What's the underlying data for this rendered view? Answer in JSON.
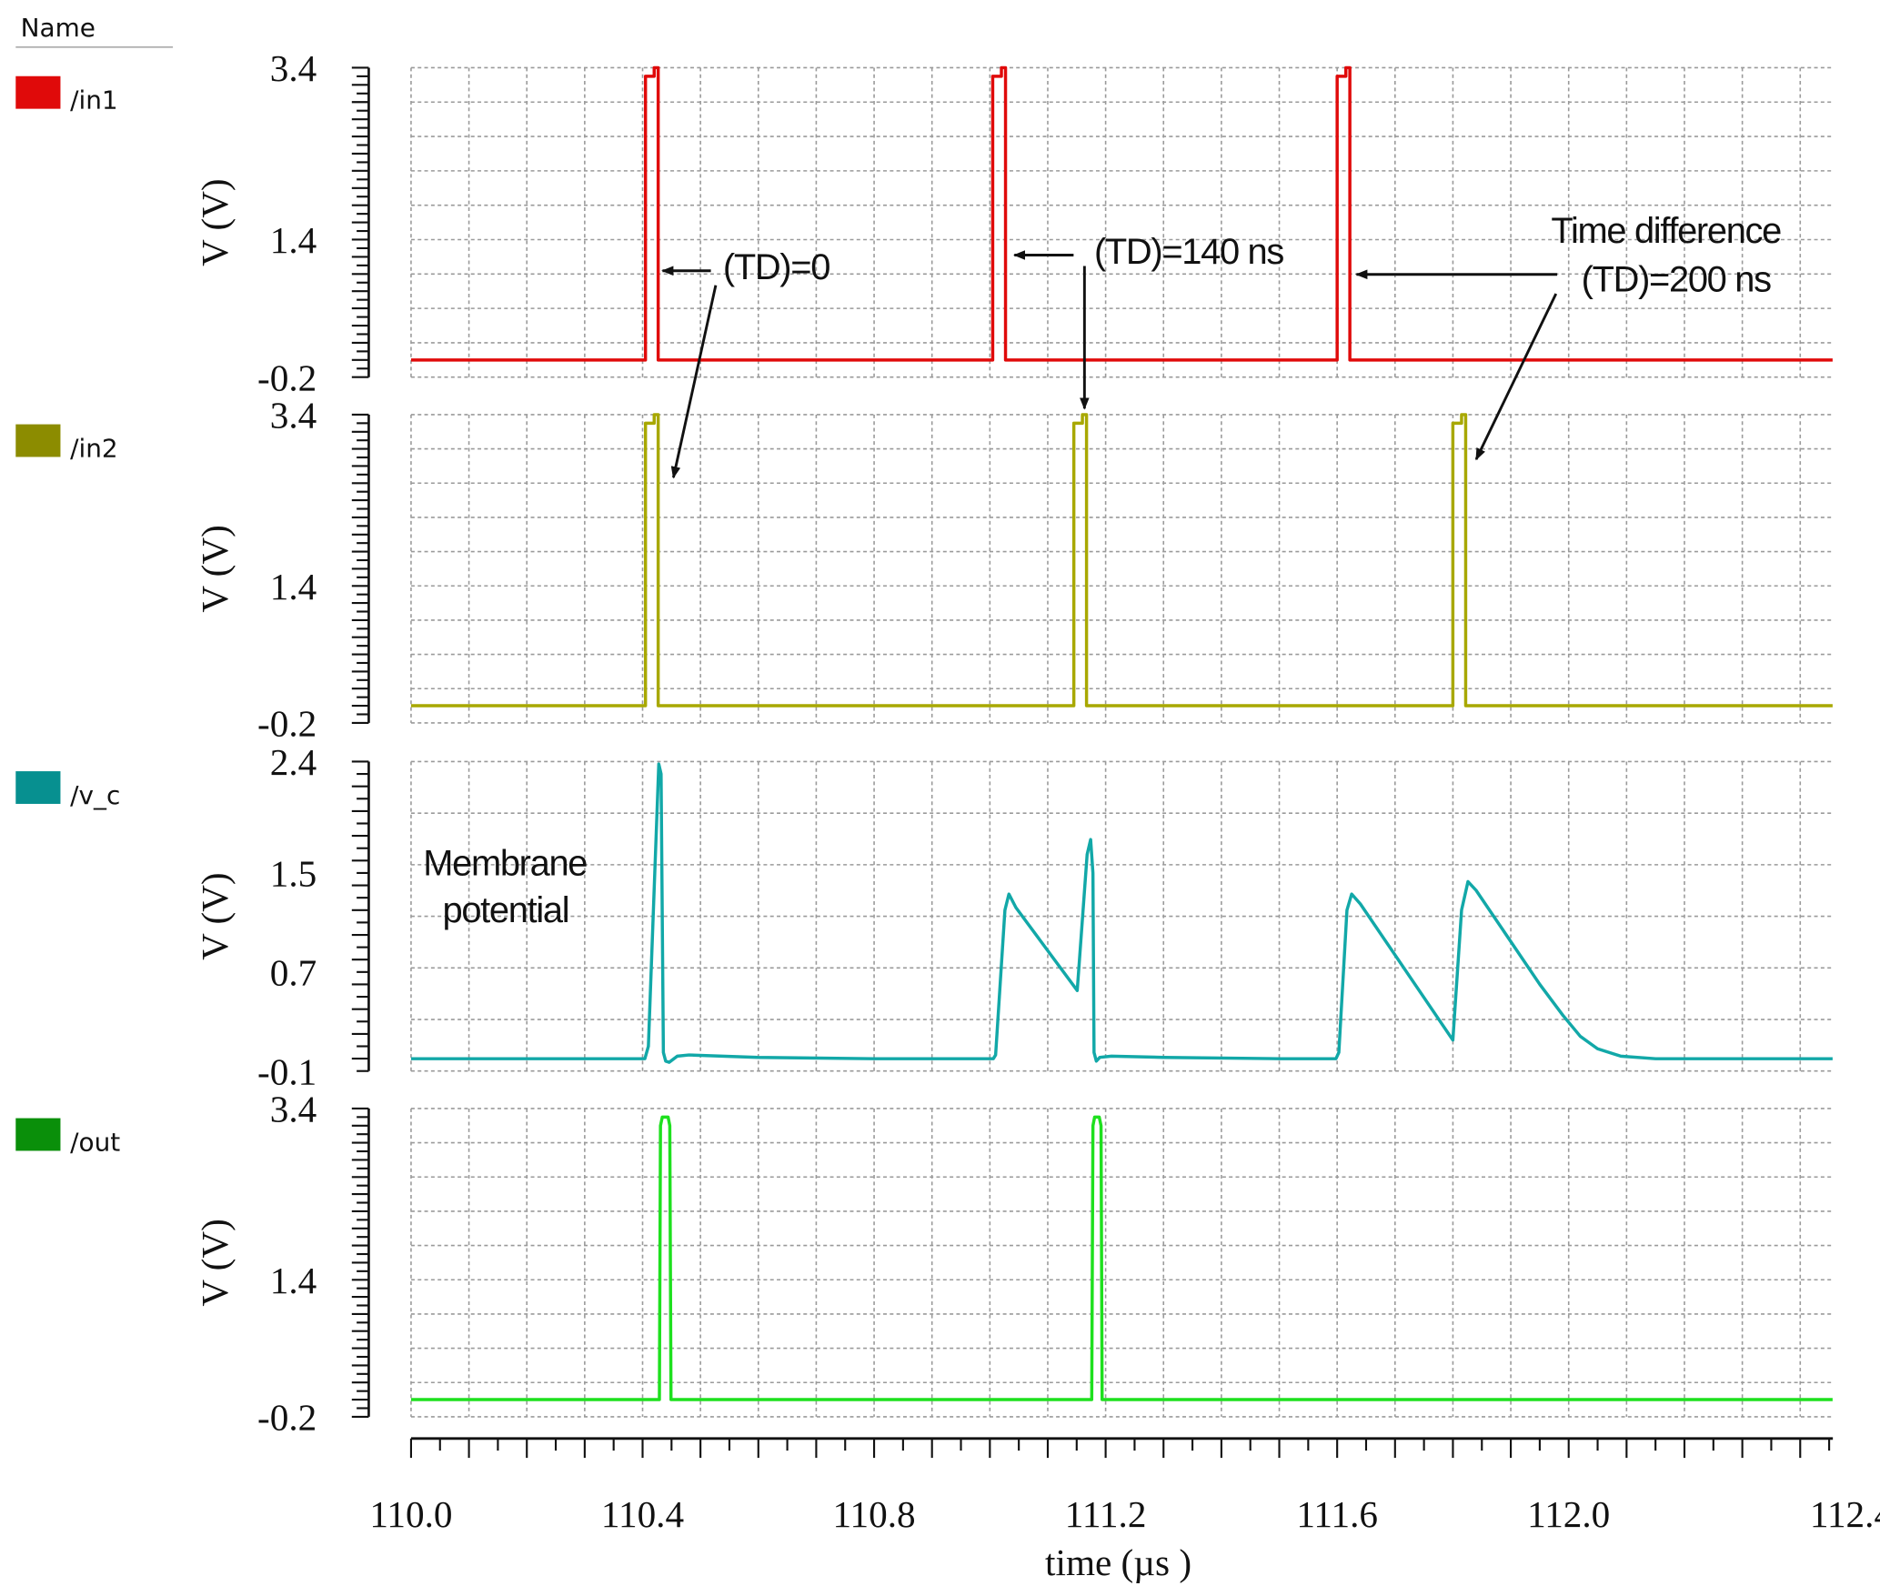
{
  "legend": {
    "title": "Name",
    "items": [
      {
        "label": "/in1",
        "swatch": "#e00a0a"
      },
      {
        "label": "/in2",
        "swatch": "#8c8c00"
      },
      {
        "label": "/v_c",
        "swatch": "#079090"
      },
      {
        "label": "/out",
        "swatch": "#0a8f0a"
      }
    ]
  },
  "annotations": {
    "td0": "(TD)=0",
    "td140": "(TD)=140 ns",
    "td200_line1": "Time difference",
    "td200_line2": "(TD)=200 ns",
    "membrane_line1": "Membrane",
    "membrane_line2": "potential"
  },
  "chart_data": {
    "type": "line",
    "xlabel": "time (µs )",
    "xlim": [
      110.0,
      112.456
    ],
    "x_tick_labels": [
      "110.0",
      "110.4",
      "110.8",
      "111.2",
      "111.6",
      "112.0",
      "112.4"
    ],
    "x_ticks": [
      110.0,
      110.4,
      110.8,
      111.2,
      111.6,
      112.0,
      112.4
    ],
    "grid": true,
    "panels": [
      {
        "name": "/in1",
        "ylabel": "V (V)",
        "ylim": [
          -0.2,
          3.4
        ],
        "y_tick_labels": [
          "3.4",
          "1.4",
          "-0.2"
        ],
        "y_ticks": [
          3.4,
          1.4,
          -0.2
        ],
        "color": "#e00a0a",
        "points": [
          [
            110,
            0
          ],
          [
            110.405,
            0
          ],
          [
            110.405,
            3.3
          ],
          [
            110.42,
            3.3
          ],
          [
            110.42,
            3.4
          ],
          [
            110.427,
            3.4
          ],
          [
            110.427,
            0
          ],
          [
            111.005,
            0
          ],
          [
            111.005,
            3.3
          ],
          [
            111.02,
            3.3
          ],
          [
            111.02,
            3.4
          ],
          [
            111.027,
            3.4
          ],
          [
            111.027,
            0
          ],
          [
            111.6,
            0
          ],
          [
            111.6,
            3.3
          ],
          [
            111.615,
            3.3
          ],
          [
            111.615,
            3.4
          ],
          [
            111.622,
            3.4
          ],
          [
            111.622,
            0
          ],
          [
            112.456,
            0
          ]
        ]
      },
      {
        "name": "/in2",
        "ylabel": "V (V)",
        "ylim": [
          -0.2,
          3.4
        ],
        "y_tick_labels": [
          "3.4",
          "1.4",
          "-0.2"
        ],
        "y_ticks": [
          3.4,
          1.4,
          -0.2
        ],
        "color": "#a8a800",
        "points": [
          [
            110,
            0
          ],
          [
            110.405,
            0
          ],
          [
            110.405,
            3.3
          ],
          [
            110.42,
            3.3
          ],
          [
            110.42,
            3.4
          ],
          [
            110.427,
            3.4
          ],
          [
            110.427,
            0
          ],
          [
            111.145,
            0
          ],
          [
            111.145,
            3.3
          ],
          [
            111.16,
            3.3
          ],
          [
            111.16,
            3.4
          ],
          [
            111.167,
            3.4
          ],
          [
            111.167,
            0
          ],
          [
            111.8,
            0
          ],
          [
            111.8,
            3.3
          ],
          [
            111.815,
            3.3
          ],
          [
            111.815,
            3.4
          ],
          [
            111.822,
            3.4
          ],
          [
            111.822,
            0
          ],
          [
            112.456,
            0
          ]
        ]
      },
      {
        "name": "/v_c",
        "ylabel": "V (V)",
        "ylim": [
          -0.1,
          2.4
        ],
        "y_tick_labels": [
          "2.4",
          "1.5",
          "0.7",
          "-0.1"
        ],
        "y_ticks": [
          2.4,
          1.5,
          0.7,
          -0.1
        ],
        "color": "#12a8a8",
        "points": [
          [
            110,
            0
          ],
          [
            110.404,
            0
          ],
          [
            110.41,
            0.1
          ],
          [
            110.428,
            2.38
          ],
          [
            110.432,
            2.3
          ],
          [
            110.436,
            0.05
          ],
          [
            110.44,
            -0.02
          ],
          [
            110.446,
            -0.03
          ],
          [
            110.46,
            0.02
          ],
          [
            110.48,
            0.03
          ],
          [
            110.6,
            0.01
          ],
          [
            110.8,
            0
          ],
          [
            111.006,
            0
          ],
          [
            111.01,
            0.03
          ],
          [
            111.026,
            1.2
          ],
          [
            111.033,
            1.33
          ],
          [
            111.045,
            1.22
          ],
          [
            111.151,
            0.55
          ],
          [
            111.168,
            1.65
          ],
          [
            111.174,
            1.77
          ],
          [
            111.178,
            1.5
          ],
          [
            111.18,
            0.05
          ],
          [
            111.184,
            -0.02
          ],
          [
            111.19,
            0.01
          ],
          [
            111.21,
            0.02
          ],
          [
            111.3,
            0.01
          ],
          [
            111.5,
            0
          ],
          [
            111.598,
            0
          ],
          [
            111.603,
            0.05
          ],
          [
            111.617,
            1.2
          ],
          [
            111.625,
            1.33
          ],
          [
            111.64,
            1.25
          ],
          [
            111.8,
            0.15
          ],
          [
            111.815,
            1.2
          ],
          [
            111.826,
            1.43
          ],
          [
            111.84,
            1.36
          ],
          [
            111.95,
            0.6
          ],
          [
            111.99,
            0.35
          ],
          [
            112.02,
            0.18
          ],
          [
            112.05,
            0.08
          ],
          [
            112.09,
            0.02
          ],
          [
            112.15,
            0
          ],
          [
            112.456,
            0
          ]
        ]
      },
      {
        "name": "/out",
        "ylabel": "V (V)",
        "ylim": [
          -0.2,
          3.4
        ],
        "y_tick_labels": [
          "3.4",
          "1.4",
          "-0.2"
        ],
        "y_ticks": [
          3.4,
          1.4,
          -0.2
        ],
        "color": "#1ee01e",
        "points": [
          [
            110,
            0
          ],
          [
            110.429,
            0
          ],
          [
            110.431,
            3.2
          ],
          [
            110.434,
            3.3
          ],
          [
            110.444,
            3.3
          ],
          [
            110.447,
            3.2
          ],
          [
            110.449,
            0
          ],
          [
            111.176,
            0
          ],
          [
            111.178,
            3.2
          ],
          [
            111.181,
            3.3
          ],
          [
            111.189,
            3.3
          ],
          [
            111.192,
            3.2
          ],
          [
            111.194,
            0
          ],
          [
            112.456,
            0
          ]
        ]
      }
    ]
  }
}
